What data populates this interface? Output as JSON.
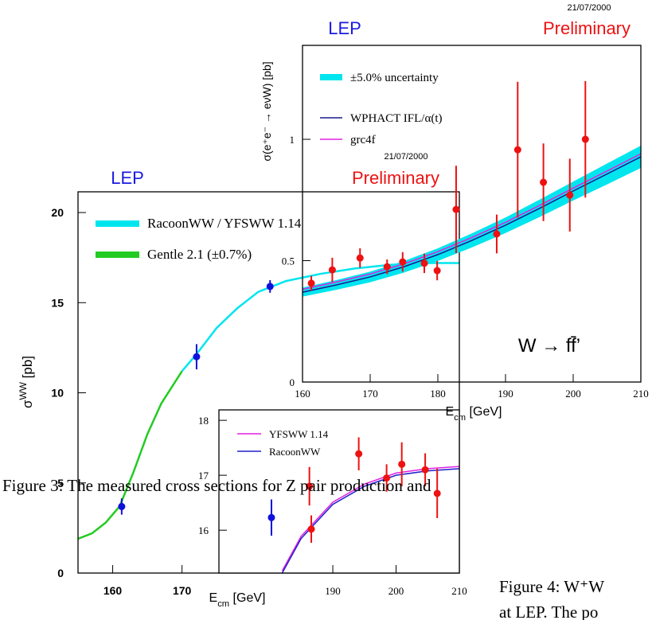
{
  "chart_data": [
    {
      "type": "line",
      "xlim": [
        155,
        210
      ],
      "ylim": [
        0,
        21.15
      ],
      "xticks": [
        160,
        170
      ],
      "yticks": [
        0,
        5,
        10,
        15,
        20
      ],
      "y_label": {
        "base": "σ",
        "sup": "WW",
        "tail": " [pb]"
      },
      "x_label": {
        "base": "E",
        "sub": "cm",
        "tail": " [GeV]"
      },
      "experiment": "LEP",
      "status": "Preliminary",
      "date": "21/07/2000",
      "series": [
        {
          "name": "RacoonWW / YFSWW 1.14",
          "color": "#00e5ee",
          "x": [
            170,
            172,
            175,
            178,
            181,
            185,
            190,
            195,
            200,
            205,
            210
          ],
          "values": [
            11.2,
            12.1,
            13.6,
            14.7,
            15.6,
            16.2,
            16.6,
            16.9,
            17.1,
            17.2,
            17.2
          ]
        },
        {
          "name": "Gentle 2.1 (±0.7%)",
          "color": "#22cc22",
          "x": [
            155,
            157,
            159,
            161,
            163,
            165,
            167,
            170
          ],
          "values": [
            1.9,
            2.2,
            2.8,
            3.7,
            5.6,
            7.7,
            9.4,
            11.2
          ]
        },
        {
          "color": "#1010dd",
          "x": [
            161.3,
            172.1,
            182.7
          ],
          "values": [
            3.69,
            12.0,
            15.9
          ],
          "errors": [
            0.45,
            0.7,
            0.35
          ]
        }
      ]
    },
    {
      "type": "line",
      "xlim": [
        160,
        210
      ],
      "ylim": [
        0,
        1.387
      ],
      "xticks": [
        160,
        170,
        180,
        190,
        200,
        210
      ],
      "yticks": [
        0,
        0.5,
        1
      ],
      "y_label": {
        "base": "σ(e⁺e⁻ → eνW) [pb]"
      },
      "x_label": {
        "base": "E",
        "sub": "cm",
        "tail": " [GeV]"
      },
      "experiment": "LEP",
      "status": "Preliminary",
      "date": "21/07/2000",
      "annotation": "W → ff̄’",
      "series": [
        {
          "name": "±5.0% uncertainty",
          "color": "#00e5ee",
          "x": [
            160,
            165,
            170,
            175,
            180,
            185,
            190,
            195,
            200,
            205,
            210
          ],
          "lower": [
            0.352,
            0.38,
            0.411,
            0.451,
            0.499,
            0.554,
            0.614,
            0.679,
            0.748,
            0.814,
            0.882
          ],
          "upper": [
            0.389,
            0.42,
            0.455,
            0.499,
            0.551,
            0.612,
            0.678,
            0.751,
            0.826,
            0.9,
            0.974
          ]
        },
        {
          "name": "WPHACT IFL/α(t)",
          "color": "#1a1a90",
          "x": [
            160,
            165,
            170,
            175,
            180,
            185,
            190,
            195,
            200,
            205,
            210
          ],
          "values": [
            0.37,
            0.4,
            0.433,
            0.475,
            0.525,
            0.583,
            0.646,
            0.715,
            0.787,
            0.857,
            0.928
          ]
        },
        {
          "name": "grc4f",
          "color": "#e020e0",
          "x": [
            160,
            165,
            170,
            175,
            180,
            185,
            190,
            195,
            200,
            205,
            210
          ],
          "values": [
            0.382,
            0.412,
            0.445,
            0.487,
            0.537,
            0.595,
            0.658,
            0.727,
            0.799,
            0.869,
            0.94
          ]
        },
        {
          "color": "#ee1111",
          "x": [
            161.3,
            164.4,
            168.5,
            172.5,
            174.8,
            178,
            179.9,
            182.7,
            188.7,
            191.8,
            195.6,
            199.5,
            201.8
          ],
          "values": [
            0.407,
            0.462,
            0.511,
            0.475,
            0.495,
            0.489,
            0.459,
            0.711,
            0.61,
            0.957,
            0.823,
            0.77,
            1.0
          ],
          "errors": [
            0.03,
            0.05,
            0.04,
            0.03,
            0.04,
            0.04,
            0.04,
            0.18,
            0.08,
            0.28,
            0.16,
            0.15,
            0.24
          ]
        }
      ]
    },
    {
      "type": "line",
      "xlim": [
        172,
        210
      ],
      "ylim": [
        15.22,
        18.19
      ],
      "xticks": [
        190,
        200,
        210
      ],
      "yticks": [
        16,
        17,
        18
      ],
      "series": [
        {
          "name": "YFSWW 1.14",
          "color": "#e020e0",
          "x": [
            182,
            185,
            190,
            195,
            200,
            205,
            210
          ],
          "values": [
            15.26,
            15.89,
            16.51,
            16.84,
            17.04,
            17.12,
            17.16
          ]
        },
        {
          "name": "RacoonWW",
          "color": "#2020cc",
          "x": [
            182,
            185,
            190,
            195,
            200,
            205,
            210
          ],
          "values": [
            15.22,
            15.85,
            16.47,
            16.8,
            17.0,
            17.08,
            17.12
          ]
        },
        {
          "color": "#1010dd",
          "x": [
            180.3
          ],
          "values": [
            16.23
          ],
          "errors": [
            0.33
          ]
        },
        {
          "color": "#ee1111",
          "x": [
            186.6,
            186.3,
            194.1,
            198.5,
            200.9,
            204.6,
            206.5
          ],
          "values": [
            16.02,
            16.8,
            17.39,
            16.95,
            17.2,
            17.1,
            16.67
          ],
          "errors": [
            0.25,
            0.35,
            0.3,
            0.25,
            0.4,
            0.3,
            0.45
          ]
        }
      ]
    }
  ],
  "captions": {
    "figure3": "Figure 3: The measured cross sections for Z pair production and",
    "figure4": [
      "Figure 4: W⁺W",
      "at LEP. The po"
    ]
  }
}
